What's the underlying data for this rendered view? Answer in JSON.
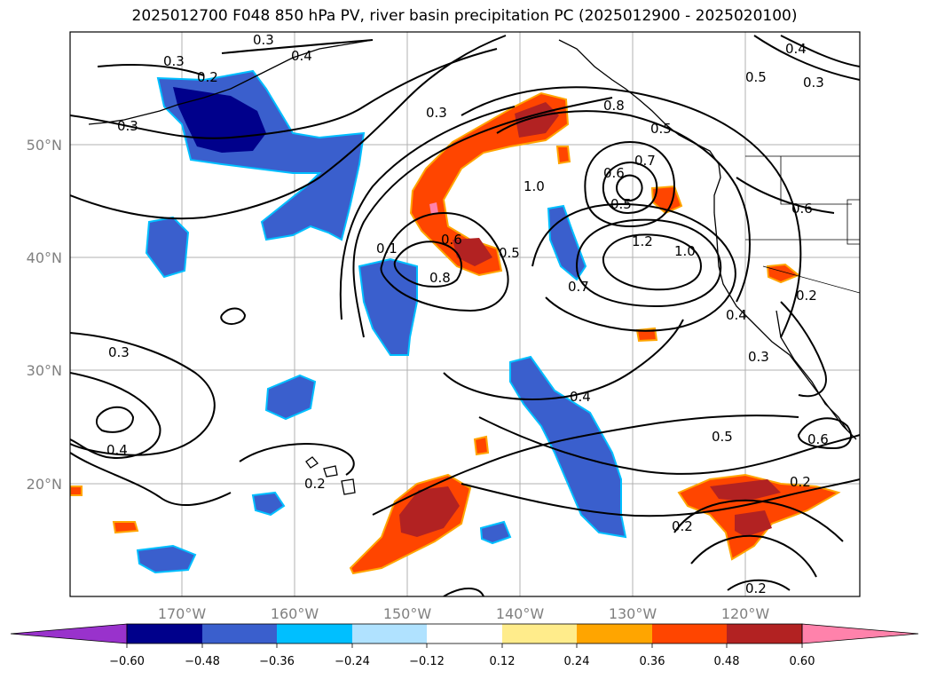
{
  "title": "2025012700 F048 850 hPa PV, river basin precipitation PC (2025012900 - 2025020100)",
  "map": {
    "lat_ticks": [
      "20°N",
      "30°N",
      "40°N",
      "50°N"
    ],
    "lon_ticks": [
      "170°W",
      "160°W",
      "150°W",
      "140°W",
      "130°W",
      "120°W"
    ],
    "grid": true,
    "colors": {
      "land_outline": "#000000",
      "contour": "#000000",
      "gridline": "#b0b0b0"
    }
  },
  "contour_labels": [
    {
      "id": "c1",
      "text": "0.3"
    },
    {
      "id": "c2",
      "text": "0.2"
    },
    {
      "id": "c3",
      "text": "0.3"
    },
    {
      "id": "c4",
      "text": "0.4"
    },
    {
      "id": "c5",
      "text": "0.5"
    },
    {
      "id": "c6",
      "text": "0.3"
    },
    {
      "id": "c7",
      "text": "0.3"
    },
    {
      "id": "c8",
      "text": "1.0"
    },
    {
      "id": "c9",
      "text": "0.6"
    },
    {
      "id": "c10",
      "text": "0.7"
    },
    {
      "id": "c11",
      "text": "0.5"
    },
    {
      "id": "c12",
      "text": "1.2"
    },
    {
      "id": "c13",
      "text": "1.0"
    },
    {
      "id": "c14",
      "text": "0.6"
    },
    {
      "id": "c15",
      "text": "0.5"
    },
    {
      "id": "c16",
      "text": "0.7"
    },
    {
      "id": "c17",
      "text": "0.6"
    },
    {
      "id": "c18",
      "text": "0.8"
    },
    {
      "id": "c19",
      "text": "0.1"
    },
    {
      "id": "c20",
      "text": "0.2"
    },
    {
      "id": "c21",
      "text": "0.4"
    },
    {
      "id": "c22",
      "text": "0.3"
    },
    {
      "id": "c23",
      "text": "0.3"
    },
    {
      "id": "c24",
      "text": "0.4"
    },
    {
      "id": "c25",
      "text": "0.4"
    },
    {
      "id": "c26",
      "text": "0.5"
    },
    {
      "id": "c27",
      "text": "0.6"
    },
    {
      "id": "c28",
      "text": "0.2"
    },
    {
      "id": "c29",
      "text": "0.2"
    },
    {
      "id": "c30",
      "text": "0.2"
    },
    {
      "id": "c31",
      "text": "0.2"
    },
    {
      "id": "c32",
      "text": "0.8"
    },
    {
      "id": "c33",
      "text": "0.3"
    },
    {
      "id": "c34",
      "text": "0.4"
    },
    {
      "id": "c35",
      "text": "0.5"
    }
  ],
  "colorbar": {
    "tick_labels": [
      "−0.60",
      "−0.48",
      "−0.36",
      "−0.24",
      "−0.12",
      "0.12",
      "0.24",
      "0.36",
      "0.48",
      "0.60"
    ],
    "colors": [
      "#9932cc",
      "#00008b",
      "#3a5fcd",
      "#00bfff",
      "#b0e2ff",
      "#ffffff",
      "#ffec8b",
      "#ffa500",
      "#ff4500",
      "#b22222",
      "#ff82ab"
    ]
  }
}
